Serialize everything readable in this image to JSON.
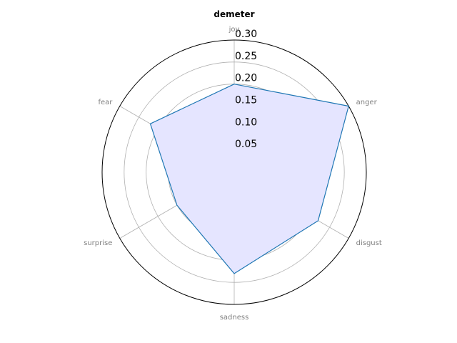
{
  "chart_data": {
    "type": "radar",
    "title": "demeter",
    "categories": [
      "joy",
      "anger",
      "disgust",
      "sadness",
      "surprise",
      "fear"
    ],
    "series": [
      {
        "values": [
          0.2,
          0.3,
          0.22,
          0.23,
          0.15,
          0.22
        ]
      }
    ],
    "rlim": [
      0,
      0.3
    ],
    "rticks": [
      "0.05",
      "0.10",
      "0.15",
      "0.20",
      "0.25",
      "0.30"
    ],
    "grid": true,
    "colors": {
      "line": "#1f77b4",
      "fill": "#e5e5ff",
      "grid": "#b0b0b0",
      "category_label": "#808080",
      "outer": "#000000"
    }
  }
}
